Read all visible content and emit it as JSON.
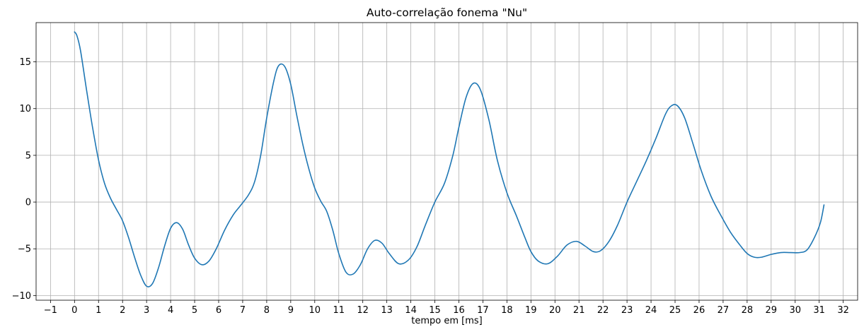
{
  "chart_data": {
    "type": "line",
    "title": "Auto-correlação fonema \"Nu\"",
    "xlabel": "tempo em [ms]",
    "ylabel": "",
    "xlim": [
      -1.6,
      32.6
    ],
    "ylim": [
      -10.5,
      19.2
    ],
    "x_ticks": [
      -1,
      0,
      1,
      2,
      3,
      4,
      5,
      6,
      7,
      8,
      9,
      10,
      11,
      12,
      13,
      14,
      15,
      16,
      17,
      18,
      19,
      20,
      21,
      22,
      23,
      24,
      25,
      26,
      27,
      28,
      29,
      30,
      31,
      32
    ],
    "x_tick_labels": [
      "−1",
      "0",
      "1",
      "2",
      "3",
      "4",
      "5",
      "6",
      "7",
      "8",
      "9",
      "10",
      "11",
      "12",
      "13",
      "14",
      "15",
      "16",
      "17",
      "18",
      "19",
      "20",
      "21",
      "22",
      "23",
      "24",
      "25",
      "26",
      "27",
      "28",
      "29",
      "30",
      "31",
      "32"
    ],
    "y_ticks": [
      -10,
      -5,
      0,
      5,
      10,
      15
    ],
    "y_tick_labels": [
      "−10",
      "−5",
      "0",
      "5",
      "10",
      "15"
    ],
    "grid": true,
    "line_color": "#1f77b4",
    "grid_color": "#b0b0b0",
    "series": [
      {
        "x": [
          0.0,
          0.1,
          0.25,
          0.5,
          0.75,
          1.0,
          1.25,
          1.5,
          1.75,
          2.0,
          2.25,
          2.5,
          2.75,
          3.0,
          3.25,
          3.5,
          3.75,
          4.0,
          4.25,
          4.5,
          4.75,
          5.0,
          5.3,
          5.6,
          5.9,
          6.25,
          6.6,
          6.9,
          7.25,
          7.5,
          7.75,
          8.0,
          8.3,
          8.5,
          8.75,
          9.0,
          9.25,
          9.5,
          9.75,
          10.0,
          10.25,
          10.5,
          10.75,
          11.0,
          11.3,
          11.6,
          11.9,
          12.2,
          12.5,
          12.8,
          13.1,
          13.5,
          13.9,
          14.25,
          14.6,
          15.0,
          15.4,
          15.75,
          16.0,
          16.3,
          16.6,
          16.9,
          17.25,
          17.6,
          18.0,
          18.4,
          18.75,
          19.0,
          19.3,
          19.7,
          20.1,
          20.5,
          20.9,
          21.25,
          21.6,
          21.9,
          22.25,
          22.6,
          23.0,
          23.4,
          23.8,
          24.2,
          24.6,
          24.85,
          25.1,
          25.4,
          25.75,
          26.1,
          26.5,
          26.9,
          27.3,
          27.7,
          28.0,
          28.3,
          28.6,
          29.0,
          29.4,
          29.8,
          30.2,
          30.5,
          30.8,
          31.05,
          31.2
        ],
        "y": [
          18.2,
          17.8,
          16.2,
          12.0,
          8.0,
          4.5,
          2.0,
          0.4,
          -0.8,
          -2.0,
          -3.8,
          -5.9,
          -7.8,
          -9.0,
          -8.7,
          -7.0,
          -4.7,
          -2.8,
          -2.2,
          -2.9,
          -4.6,
          -6.0,
          -6.7,
          -6.3,
          -5.0,
          -3.0,
          -1.4,
          -0.4,
          0.8,
          2.2,
          5.0,
          9.0,
          13.0,
          14.6,
          14.5,
          12.6,
          9.3,
          6.2,
          3.6,
          1.5,
          0.1,
          -1.0,
          -3.0,
          -5.5,
          -7.5,
          -7.7,
          -6.7,
          -5.0,
          -4.1,
          -4.4,
          -5.5,
          -6.6,
          -6.2,
          -4.8,
          -2.5,
          0.0,
          2.0,
          5.0,
          8.0,
          11.2,
          12.7,
          12.0,
          8.8,
          4.5,
          1.0,
          -1.5,
          -3.8,
          -5.3,
          -6.3,
          -6.6,
          -5.8,
          -4.6,
          -4.2,
          -4.7,
          -5.3,
          -5.2,
          -4.2,
          -2.5,
          0.0,
          2.2,
          4.4,
          6.8,
          9.4,
          10.3,
          10.3,
          9.0,
          6.2,
          3.3,
          0.6,
          -1.4,
          -3.2,
          -4.6,
          -5.5,
          -5.9,
          -5.9,
          -5.6,
          -5.4,
          -5.4,
          -5.4,
          -5.1,
          -3.8,
          -2.2,
          -0.3
        ]
      }
    ]
  }
}
